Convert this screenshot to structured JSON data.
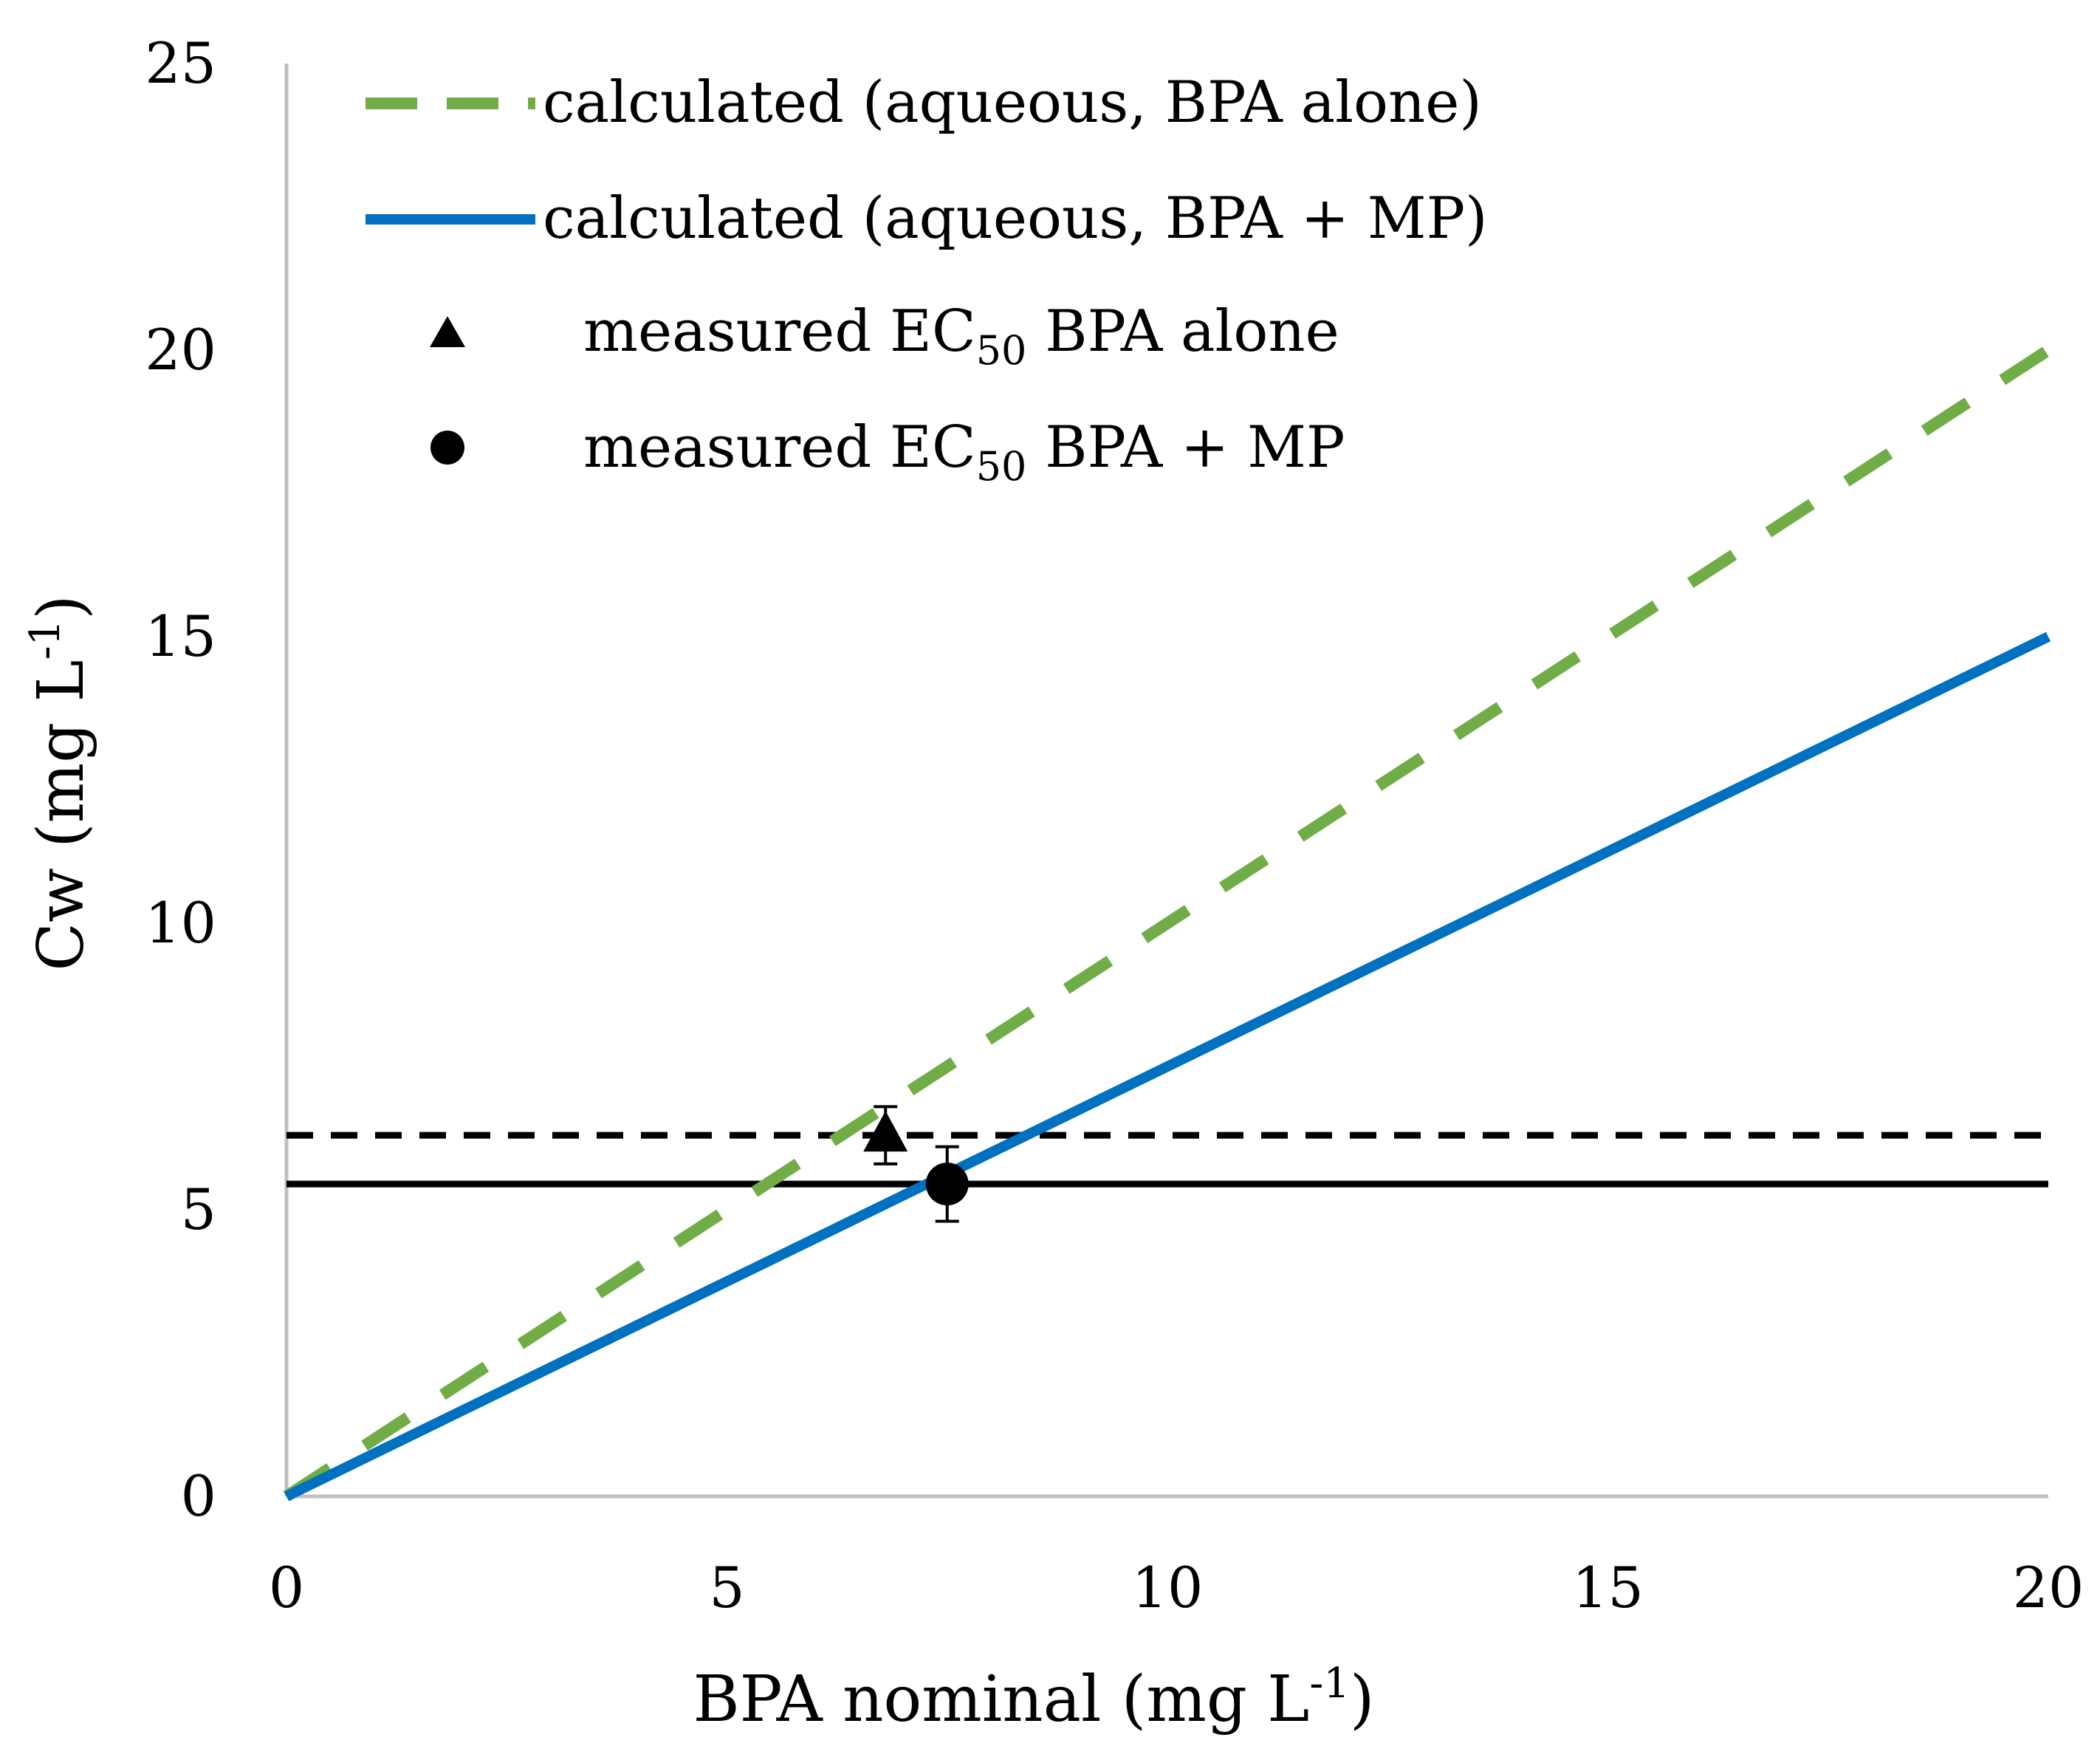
{
  "chart_data": {
    "type": "line",
    "xlabel": {
      "main": "BPA nominal (mg L",
      "sup": "-1",
      "end": ")"
    },
    "ylabel": {
      "main": "Cw (mg L",
      "sup": "-1",
      "end": ")"
    },
    "xlim": [
      0,
      20
    ],
    "ylim": [
      0,
      25
    ],
    "x_ticks": [
      "0",
      "5",
      "10",
      "15",
      "20"
    ],
    "y_ticks": [
      "0",
      "5",
      "10",
      "15",
      "20",
      "25"
    ],
    "grid": false,
    "legend_position": "top-left",
    "series": [
      {
        "name": "calculated (aqueous, BPA alone)",
        "style": "dashed",
        "color": "#70AD47",
        "x": [
          0,
          20
        ],
        "y": [
          0,
          20
        ]
      },
      {
        "name": "calculated (aqueous, BPA + MP)",
        "style": "solid",
        "color": "#0070C0",
        "x": [
          0,
          20
        ],
        "y": [
          0,
          15
        ]
      }
    ],
    "points": [
      {
        "name": "measured EC50 BPA alone",
        "label": "measured EC",
        "sub": "50",
        "suffix": " BPA alone",
        "marker": "triangle",
        "x": 6.8,
        "y": 6.3,
        "err": 0.5
      },
      {
        "name": "measured EC50 BPA + MP",
        "label": "measured EC",
        "sub": "50",
        "suffix": " BPA + MP",
        "marker": "circle",
        "x": 7.5,
        "y": 5.45,
        "err": 0.65
      }
    ],
    "reference_lines": [
      {
        "name": "EC50 BPA alone level",
        "style": "dashed",
        "y": 6.3,
        "color": "#000000"
      },
      {
        "name": "EC50 BPA + MP level",
        "style": "solid",
        "y": 5.45,
        "color": "#000000"
      }
    ]
  }
}
